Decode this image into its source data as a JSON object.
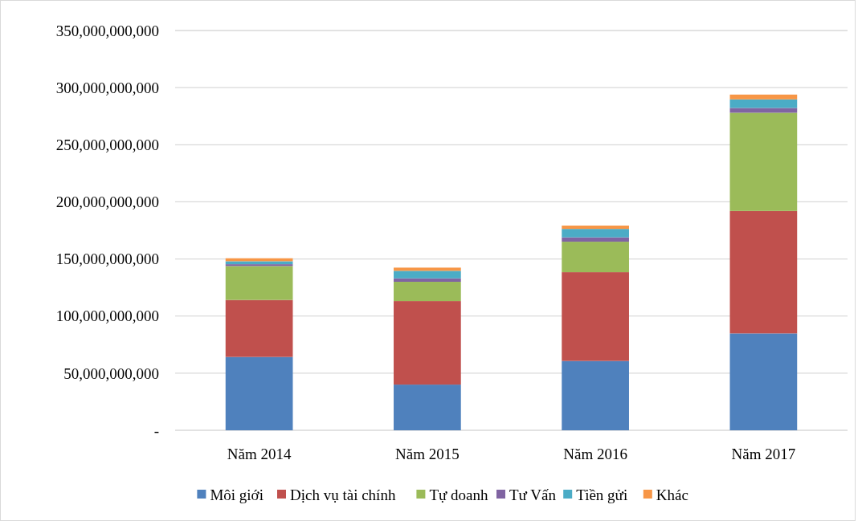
{
  "chart_data": {
    "type": "bar",
    "stacked": true,
    "categories": [
      "Năm 2014",
      "Năm 2015",
      "Năm 2016",
      "Năm 2017"
    ],
    "series": [
      {
        "name": "Môi giới",
        "color": "#4f81bd",
        "values": [
          64200000000,
          40000000000,
          60700000000,
          84800000000
        ]
      },
      {
        "name": "Dịch vụ tài chính",
        "color": "#c0504d",
        "values": [
          49900000000,
          73100000000,
          77700000000,
          107200000000
        ]
      },
      {
        "name": "Tự doanh",
        "color": "#9bbb59",
        "values": [
          29700000000,
          16900000000,
          26700000000,
          86000000000
        ]
      },
      {
        "name": "Tư Vấn",
        "color": "#8064a2",
        "values": [
          1600000000,
          3000000000,
          3800000000,
          4200000000
        ]
      },
      {
        "name": "Tiền gửi",
        "color": "#4bacc6",
        "values": [
          2600000000,
          6600000000,
          7400000000,
          7500000000
        ]
      },
      {
        "name": "Khác",
        "color": "#f79646",
        "values": [
          2600000000,
          2800000000,
          2900000000,
          4200000000
        ]
      }
    ],
    "ylim": [
      0,
      350000000000
    ],
    "yticks": [
      {
        "value": 0,
        "label": "-"
      },
      {
        "value": 50000000000,
        "label": "50,000,000,000"
      },
      {
        "value": 100000000000,
        "label": "100,000,000,000"
      },
      {
        "value": 150000000000,
        "label": "150,000,000,000"
      },
      {
        "value": 200000000000,
        "label": "200,000,000,000"
      },
      {
        "value": 250000000000,
        "label": "250,000,000,000"
      },
      {
        "value": 300000000000,
        "label": "300,000,000,000"
      },
      {
        "value": 350000000000,
        "label": "350,000,000,000"
      }
    ],
    "grid": "y",
    "legend": "bottom"
  }
}
